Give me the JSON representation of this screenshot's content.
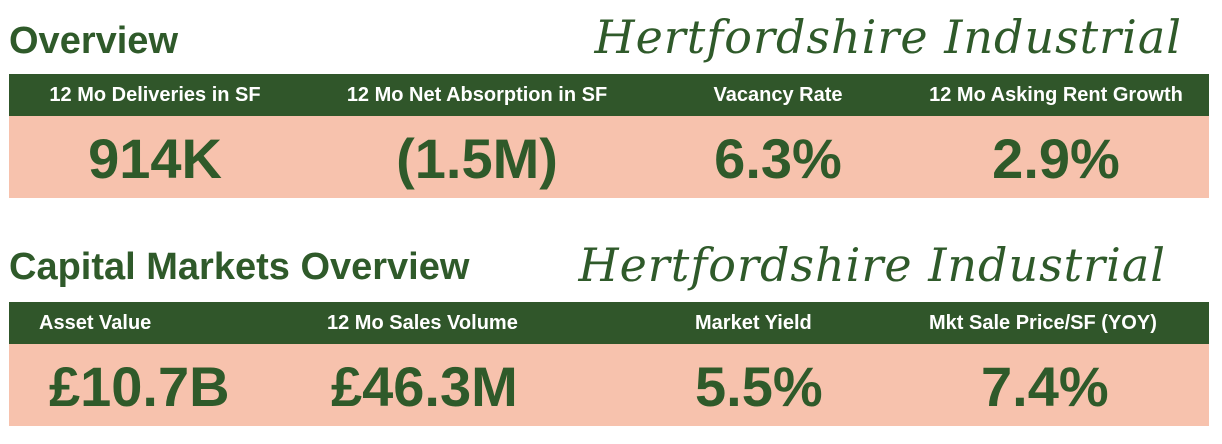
{
  "overview": {
    "title": "Overview",
    "market": "Hertfordshire Industrial",
    "metrics": [
      {
        "label": "12 Mo Deliveries in SF",
        "value": "914K"
      },
      {
        "label": "12 Mo Net Absorption in SF",
        "value": "(1.5M)"
      },
      {
        "label": "Vacancy Rate",
        "value": "6.3%"
      },
      {
        "label": "12 Mo Asking Rent Growth",
        "value": "2.9%"
      }
    ]
  },
  "capital_markets": {
    "title": "Capital Markets Overview",
    "market": "Hertfordshire Industrial",
    "metrics": [
      {
        "label": "Asset Value",
        "value": "£10.7B"
      },
      {
        "label": "12 Mo Sales Volume",
        "value": "£46.3M"
      },
      {
        "label": "Market Yield",
        "value": "5.5%"
      },
      {
        "label": "Mkt Sale Price/SF (YOY)",
        "value": "7.4%"
      }
    ]
  },
  "colors": {
    "header_green": "#30562a",
    "text_green": "#2f5a2a",
    "value_background": "#f7c2ad"
  }
}
